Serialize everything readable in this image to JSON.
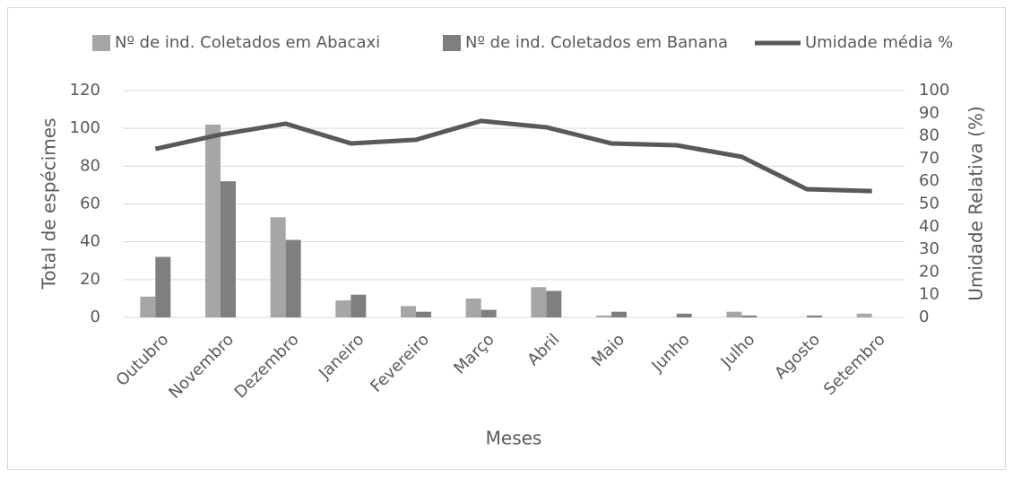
{
  "chart_data": {
    "type": "bar-line",
    "categories": [
      "Outubro",
      "Novembro",
      "Dezembro",
      "Janeiro",
      "Fevereiro",
      "Março",
      "Abril",
      "Maio",
      "Junho",
      "Julho",
      "Agosto",
      "Setembro"
    ],
    "series": [
      {
        "name": "Nº de ind. Coletados em Abacaxi",
        "color": "#a6a6a6",
        "type": "bar",
        "values": [
          11,
          102,
          53,
          9,
          6,
          10,
          16,
          1,
          0,
          3,
          0,
          2
        ]
      },
      {
        "name": "Nº de ind. Coletados em Banana",
        "color": "#7f7f7f",
        "type": "bar",
        "values": [
          32,
          72,
          41,
          12,
          3,
          4,
          14,
          3,
          2,
          1,
          1,
          0
        ]
      },
      {
        "name": "Umidade média %",
        "color": "#595959",
        "type": "line",
        "axis": "y2",
        "values": [
          74.3,
          80.6,
          85.4,
          76.7,
          78.3,
          86.6,
          83.8,
          76.7,
          75.9,
          70.8,
          56.5,
          55.7
        ]
      }
    ],
    "xlabel": "Meses",
    "ylabel": "Total de espécimes",
    "y2label": "Umidade Relativa (%)",
    "ylim": [
      0,
      120
    ],
    "yticks": [
      0,
      20,
      40,
      60,
      80,
      100,
      120
    ],
    "y2lim": [
      0,
      100
    ],
    "y2ticks": [
      0,
      10,
      20,
      30,
      40,
      50,
      60,
      70,
      80,
      90,
      100
    ],
    "grid": true,
    "legend": "top"
  }
}
